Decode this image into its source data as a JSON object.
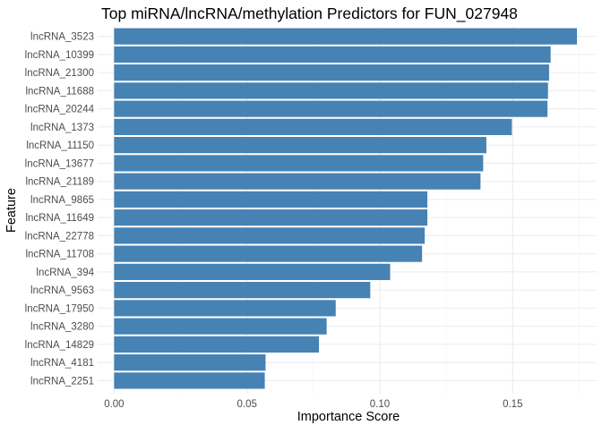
{
  "chart_data": {
    "type": "bar",
    "orientation": "horizontal",
    "title": "Top miRNA/lncRNA/methylation Predictors for FUN_027948",
    "xlabel": "Importance Score",
    "ylabel": "Feature",
    "xlim": [
      -0.0062,
      0.1816
    ],
    "x_ticks": [
      0.0,
      0.05,
      0.1,
      0.15
    ],
    "x_tick_labels": [
      "0.00",
      "0.05",
      "0.10",
      "0.15"
    ],
    "grid": true,
    "bar_color": "#4682b4",
    "categories": [
      "lncRNA_3523",
      "lncRNA_10399",
      "lncRNA_21300",
      "lncRNA_11688",
      "lncRNA_20244",
      "lncRNA_1373",
      "lncRNA_11150",
      "lncRNA_13677",
      "lncRNA_21189",
      "lncRNA_9865",
      "lncRNA_11649",
      "lncRNA_22778",
      "lncRNA_11708",
      "lncRNA_394",
      "lncRNA_9563",
      "lncRNA_17950",
      "lncRNA_3280",
      "lncRNA_14829",
      "lncRNA_4181",
      "lncRNA_2251"
    ],
    "values": [
      0.1742,
      0.1643,
      0.1637,
      0.1633,
      0.1631,
      0.1497,
      0.1401,
      0.1389,
      0.1379,
      0.1179,
      0.1179,
      0.1169,
      0.1159,
      0.1039,
      0.0964,
      0.0834,
      0.08,
      0.0771,
      0.057,
      0.0567
    ]
  }
}
